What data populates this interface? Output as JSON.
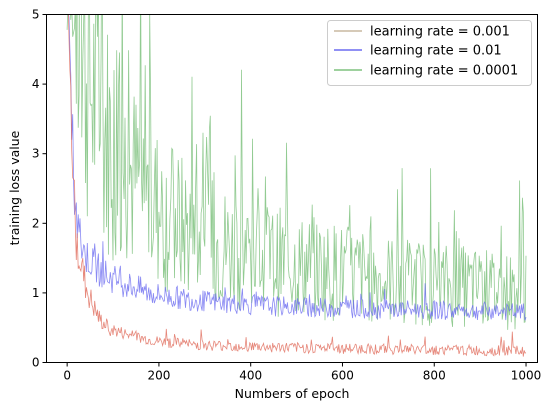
{
  "chart_data": {
    "type": "line",
    "xlabel": "Numbers of epoch",
    "ylabel": "training loss value",
    "xlim": [
      -45,
      1025
    ],
    "ylim": [
      0,
      5
    ],
    "xticks": [
      0,
      200,
      400,
      600,
      800,
      1000
    ],
    "yticks": [
      0,
      1,
      2,
      3,
      4,
      5
    ],
    "grid": false,
    "legend_position": "top-right",
    "series": [
      {
        "name": "learning rate = 0.001",
        "color": "#c8b9a0",
        "noisy_color": "#e06a5a",
        "x": [
          0,
          5,
          10,
          15,
          20,
          30,
          40,
          50,
          60,
          70,
          80,
          90,
          100,
          120,
          140,
          160,
          180,
          200,
          250,
          300,
          350,
          400,
          450,
          500,
          550,
          600,
          650,
          700,
          750,
          800,
          850,
          900,
          950,
          1000
        ],
        "y": [
          5.0,
          4.2,
          3.0,
          2.2,
          1.8,
          1.4,
          1.1,
          0.9,
          0.75,
          0.62,
          0.55,
          0.5,
          0.46,
          0.42,
          0.38,
          0.35,
          0.32,
          0.3,
          0.27,
          0.25,
          0.24,
          0.23,
          0.22,
          0.21,
          0.21,
          0.2,
          0.2,
          0.19,
          0.19,
          0.18,
          0.18,
          0.17,
          0.17,
          0.16
        ]
      },
      {
        "name": "learning rate = 0.01",
        "color": "#6c6cf0",
        "x": [
          0,
          5,
          10,
          15,
          20,
          30,
          40,
          50,
          60,
          80,
          100,
          120,
          140,
          160,
          180,
          200,
          250,
          300,
          350,
          400,
          450,
          500,
          550,
          600,
          650,
          700,
          750,
          800,
          850,
          900,
          950,
          1000
        ],
        "y": [
          5.0,
          4.3,
          3.2,
          2.4,
          2.0,
          1.7,
          1.55,
          1.45,
          1.38,
          1.28,
          1.2,
          1.15,
          1.1,
          1.05,
          1.0,
          0.97,
          0.92,
          0.88,
          0.85,
          0.83,
          0.81,
          0.8,
          0.79,
          0.78,
          0.77,
          0.76,
          0.76,
          0.75,
          0.74,
          0.74,
          0.73,
          0.72
        ]
      },
      {
        "name": "learning rate = 0.0001",
        "color": "#7fc27f",
        "x": [
          0,
          10,
          20,
          30,
          40,
          50,
          60,
          80,
          100,
          120,
          140,
          160,
          180,
          200,
          250,
          300,
          350,
          400,
          450,
          500,
          550,
          600,
          650,
          700,
          750,
          800,
          850,
          900,
          950,
          1000
        ],
        "y": [
          5.0,
          5.0,
          4.9,
          4.6,
          4.3,
          4.0,
          3.8,
          3.4,
          3.1,
          2.9,
          2.7,
          2.5,
          2.35,
          2.2,
          1.95,
          1.8,
          1.65,
          1.55,
          1.47,
          1.4,
          1.35,
          1.3,
          1.25,
          1.2,
          1.17,
          1.13,
          1.1,
          1.07,
          1.04,
          1.0
        ]
      }
    ]
  }
}
